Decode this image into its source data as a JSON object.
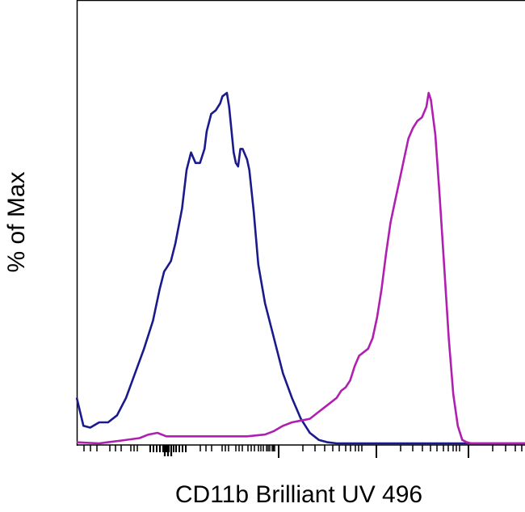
{
  "chart_data": {
    "type": "line",
    "title": "",
    "xlabel": "CD11b Brilliant UV 496",
    "ylabel": "% of Max",
    "x_scale": "biexponential (log-like)",
    "ylim": [
      0,
      100
    ],
    "grid": false,
    "legend": "none",
    "series": [
      {
        "color": "#1a1a8c",
        "points": [
          [
            0,
            13
          ],
          [
            1.5,
            5
          ],
          [
            3,
            4.5
          ],
          [
            5,
            6
          ],
          [
            7,
            6
          ],
          [
            9,
            8
          ],
          [
            11,
            13
          ],
          [
            13,
            20
          ],
          [
            15,
            27
          ],
          [
            17,
            35
          ],
          [
            18.5,
            44
          ],
          [
            19.5,
            49
          ],
          [
            20.5,
            51
          ],
          [
            21,
            52
          ],
          [
            22,
            57
          ],
          [
            23.5,
            67
          ],
          [
            24.5,
            78
          ],
          [
            25.5,
            83
          ],
          [
            26.5,
            80
          ],
          [
            27.5,
            80
          ],
          [
            28.5,
            84
          ],
          [
            29,
            89
          ],
          [
            30,
            94
          ],
          [
            31,
            95
          ],
          [
            32,
            97
          ],
          [
            32.5,
            99
          ],
          [
            33.5,
            100
          ],
          [
            34,
            96
          ],
          [
            35,
            83
          ],
          [
            35.5,
            80
          ],
          [
            36,
            79
          ],
          [
            36.5,
            84
          ],
          [
            37,
            84
          ],
          [
            38,
            81
          ],
          [
            38.5,
            78
          ],
          [
            39.5,
            66
          ],
          [
            40.5,
            51
          ],
          [
            42,
            40
          ],
          [
            44,
            30
          ],
          [
            46,
            20
          ],
          [
            48,
            13
          ],
          [
            50,
            7
          ],
          [
            52,
            3
          ],
          [
            54,
            1
          ],
          [
            56,
            0.3
          ],
          [
            58,
            0
          ],
          [
            100,
            0
          ]
        ]
      },
      {
        "color": "#b01fb0",
        "points": [
          [
            0,
            0.3
          ],
          [
            5,
            0
          ],
          [
            10,
            0.8
          ],
          [
            14,
            1.5
          ],
          [
            16,
            2.5
          ],
          [
            18,
            3
          ],
          [
            20,
            2
          ],
          [
            24,
            2
          ],
          [
            28,
            2
          ],
          [
            32,
            2
          ],
          [
            38,
            2
          ],
          [
            42,
            2.5
          ],
          [
            44,
            3.5
          ],
          [
            46,
            5
          ],
          [
            48,
            6
          ],
          [
            50,
            6.5
          ],
          [
            52,
            7
          ],
          [
            54,
            9
          ],
          [
            56,
            11
          ],
          [
            58,
            13
          ],
          [
            59,
            15
          ],
          [
            60,
            16
          ],
          [
            61,
            18
          ],
          [
            62,
            22
          ],
          [
            63,
            25
          ],
          [
            64,
            26
          ],
          [
            65,
            27
          ],
          [
            66,
            30
          ],
          [
            67,
            36
          ],
          [
            68,
            44
          ],
          [
            69,
            54
          ],
          [
            70,
            63
          ],
          [
            71,
            69
          ],
          [
            72,
            75
          ],
          [
            73,
            81
          ],
          [
            74,
            87
          ],
          [
            75,
            90
          ],
          [
            76,
            92
          ],
          [
            77,
            93
          ],
          [
            78,
            96
          ],
          [
            78.5,
            100
          ],
          [
            79,
            98
          ],
          [
            80,
            88
          ],
          [
            81,
            70
          ],
          [
            82,
            50
          ],
          [
            83,
            30
          ],
          [
            84,
            14
          ],
          [
            85,
            5
          ],
          [
            86,
            1
          ],
          [
            87,
            0.3
          ],
          [
            88,
            0
          ],
          [
            100,
            0
          ]
        ]
      }
    ]
  }
}
